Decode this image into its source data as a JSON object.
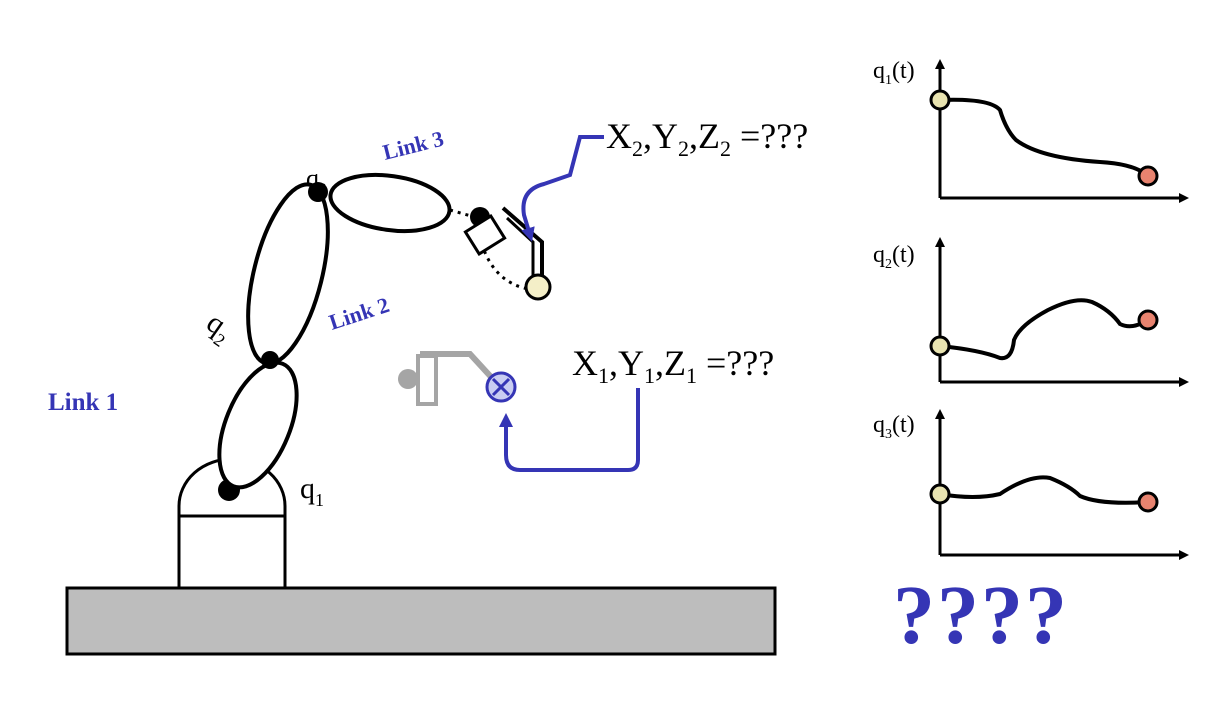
{
  "labels": {
    "link1": "Link 1",
    "link2": "Link 2",
    "link3": "Link 3",
    "q1": "q",
    "q1_sub": "1",
    "q2": "q",
    "q2_sub": "2",
    "q3": "q",
    "q3_sub": "3"
  },
  "targets": {
    "t1": {
      "X": "X",
      "Y": "Y",
      "Z": "Z",
      "sub": "1",
      "eq": "=???"
    },
    "t2": {
      "X": "X",
      "Y": "Y",
      "Z": "Z",
      "sub": "2",
      "eq": "=???"
    }
  },
  "plots": [
    {
      "label": "q",
      "sub": "1",
      "suffix": "(t)"
    },
    {
      "label": "q",
      "sub": "2",
      "suffix": "(t)"
    },
    {
      "label": "q",
      "sub": "3",
      "suffix": "(t)"
    }
  ],
  "question": "????",
  "colors": {
    "blue": "#3535b5",
    "ground": "#bdbdbd",
    "start_dot": "#e8e3b0",
    "end_dot": "#e8836f",
    "ghost": "#888888"
  }
}
